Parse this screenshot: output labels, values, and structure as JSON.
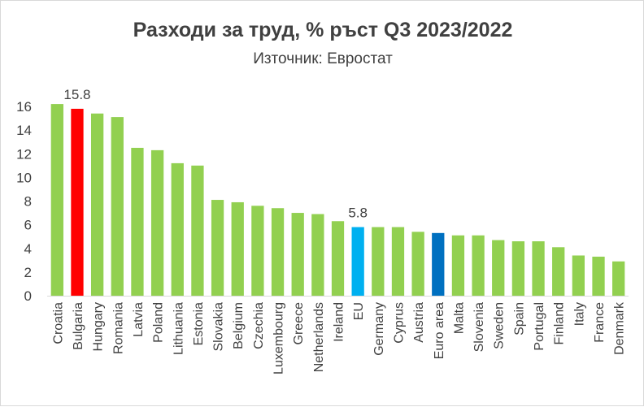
{
  "chart_data": {
    "type": "bar",
    "title": "Разходи за труд, % ръст Q3 2023/2022",
    "subtitle": "Източник: Евростат",
    "xlabel": "",
    "ylabel": "",
    "ylim": [
      0,
      16
    ],
    "yticks": [
      0,
      2,
      4,
      6,
      8,
      10,
      12,
      14,
      16
    ],
    "grid": false,
    "legend": "none",
    "categories": [
      "Croatia",
      "Bulgaria",
      "Hungary",
      "Romania",
      "Latvia",
      "Poland",
      "Lithuania",
      "Estonia",
      "Slovakia",
      "Belgium",
      "Czechia",
      "Luxembourg",
      "Greece",
      "Netherlands",
      "Ireland",
      "EU",
      "Germany",
      "Cyprus",
      "Austria",
      "Euro area",
      "Malta",
      "Slovenia",
      "Sweden",
      "Spain",
      "Portugal",
      "Finland",
      "Italy",
      "France",
      "Denmark"
    ],
    "values": [
      16.2,
      15.8,
      15.4,
      15.1,
      12.5,
      12.3,
      11.2,
      11.0,
      8.1,
      7.9,
      7.6,
      7.4,
      7.0,
      6.9,
      6.3,
      5.8,
      5.8,
      5.8,
      5.4,
      5.3,
      5.1,
      5.1,
      4.7,
      4.6,
      4.6,
      4.1,
      3.4,
      3.3,
      2.9
    ],
    "colors": [
      "#92d050",
      "#ff0000",
      "#92d050",
      "#92d050",
      "#92d050",
      "#92d050",
      "#92d050",
      "#92d050",
      "#92d050",
      "#92d050",
      "#92d050",
      "#92d050",
      "#92d050",
      "#92d050",
      "#92d050",
      "#00b0f0",
      "#92d050",
      "#92d050",
      "#92d050",
      "#0070c0",
      "#92d050",
      "#92d050",
      "#92d050",
      "#92d050",
      "#92d050",
      "#92d050",
      "#92d050",
      "#92d050",
      "#92d050"
    ],
    "data_labels": [
      {
        "category": "Bulgaria",
        "text": "15.8"
      },
      {
        "category": "EU",
        "text": "5.8"
      }
    ]
  }
}
